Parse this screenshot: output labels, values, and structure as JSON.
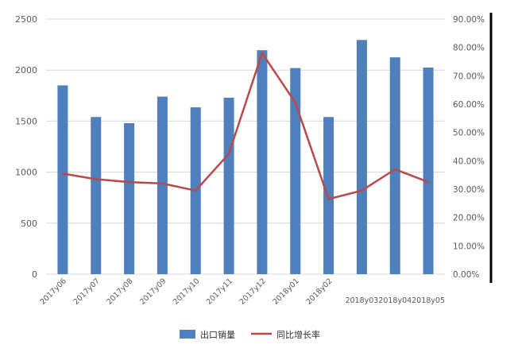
{
  "chart_data": {
    "type": "bar",
    "categories": [
      "2017y06",
      "2017y07",
      "2017y08",
      "2017y09",
      "2017y10",
      "2017y11",
      "2017y12",
      "2018y01",
      "2018y02",
      "2018y03",
      "2018y04",
      "2018y05"
    ],
    "series": [
      {
        "name": "出口销量",
        "kind": "bar",
        "axis": "left",
        "color": "#4f7fbd",
        "values": [
          1850,
          1540,
          1480,
          1740,
          1635,
          1730,
          2195,
          2020,
          1540,
          2295,
          2125,
          2025
        ]
      },
      {
        "name": "同比增长率",
        "kind": "line",
        "axis": "right",
        "color": "#b84a4a",
        "values": [
          35.5,
          33.5,
          32.5,
          32.0,
          29.5,
          42.5,
          78.0,
          60.5,
          26.5,
          29.5,
          37.0,
          32.5
        ]
      }
    ],
    "y_left": {
      "ylim": [
        0,
        2500
      ],
      "ticks": [
        "0",
        "500",
        "1000",
        "1500",
        "2000",
        "2500"
      ]
    },
    "y_right": {
      "ylim": [
        0,
        90
      ],
      "ticks": [
        "0.00%",
        "10.00%",
        "20.00%",
        "30.00%",
        "40.00%",
        "50.00%",
        "60.00%",
        "70.00%",
        "80.00%",
        "90.00%"
      ]
    },
    "grid": true,
    "legend_position": "bottom"
  }
}
